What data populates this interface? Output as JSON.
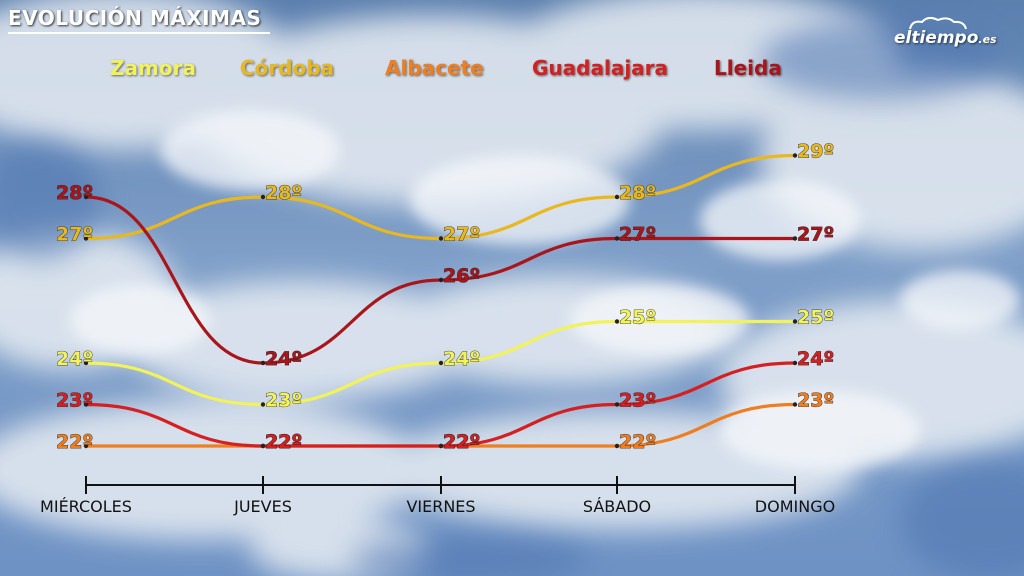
{
  "header": {
    "title": "EVOLUCIÓN MÁXIMAS",
    "brand": "eltiempo",
    "brand_suffix": ".es"
  },
  "chart_data": {
    "type": "line",
    "title": "EVOLUCIÓN MÁXIMAS",
    "categories": [
      "MIÉRCOLES",
      "JUEVES",
      "VIERNES",
      "SÁBADO",
      "DOMINGO"
    ],
    "unit": "º",
    "ylim": [
      20,
      30
    ],
    "legend_position": "top",
    "grid": false,
    "series": [
      {
        "name": "Zamora",
        "color": "#f2f25a",
        "values": [
          24,
          23,
          24,
          25,
          25
        ]
      },
      {
        "name": "Córdoba",
        "color": "#e8b820",
        "values": [
          27,
          28,
          27,
          28,
          29
        ]
      },
      {
        "name": "Albacete",
        "color": "#ee7e22",
        "values": [
          22,
          22,
          22,
          22,
          23
        ]
      },
      {
        "name": "Guadalajara",
        "color": "#d42020",
        "values": [
          23,
          22,
          22,
          23,
          24
        ]
      },
      {
        "name": "Lleida",
        "color": "#a8161c",
        "values": [
          28,
          24,
          26,
          27,
          27
        ]
      }
    ]
  }
}
